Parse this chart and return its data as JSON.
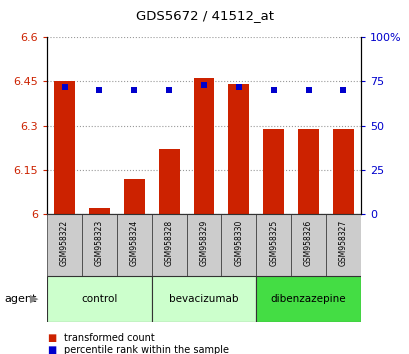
{
  "title": "GDS5672 / 41512_at",
  "samples": [
    "GSM958322",
    "GSM958323",
    "GSM958324",
    "GSM958328",
    "GSM958329",
    "GSM958330",
    "GSM958325",
    "GSM958326",
    "GSM958327"
  ],
  "transformed_counts": [
    6.45,
    6.02,
    6.12,
    6.22,
    6.46,
    6.44,
    6.29,
    6.29,
    6.29
  ],
  "percentile_ranks": [
    72,
    70,
    70,
    70,
    73,
    72,
    70,
    70,
    70
  ],
  "ylim": [
    6.0,
    6.6
  ],
  "yticks": [
    6.0,
    6.15,
    6.3,
    6.45,
    6.6
  ],
  "ytick_labels": [
    "6",
    "6.15",
    "6.3",
    "6.45",
    "6.6"
  ],
  "y2lim": [
    0,
    100
  ],
  "y2ticks": [
    0,
    25,
    50,
    75,
    100
  ],
  "y2labels": [
    "0",
    "25",
    "50",
    "75",
    "100%"
  ],
  "bar_color": "#cc2200",
  "dot_color": "#0000cc",
  "groups": [
    {
      "label": "control",
      "indices": [
        0,
        1,
        2
      ],
      "color": "#ccffcc"
    },
    {
      "label": "bevacizumab",
      "indices": [
        3,
        4,
        5
      ],
      "color": "#ccffcc"
    },
    {
      "label": "dibenzazepine",
      "indices": [
        6,
        7,
        8
      ],
      "color": "#44dd44"
    }
  ],
  "agent_label": "agent",
  "legend_bar_label": "transformed count",
  "legend_dot_label": "percentile rank within the sample"
}
